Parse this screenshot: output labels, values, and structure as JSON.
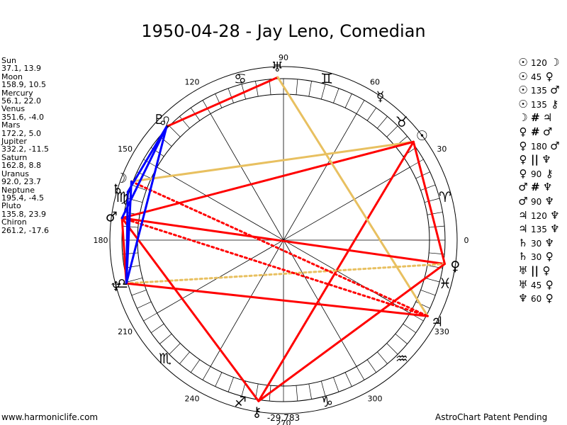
{
  "title": "1950-04-28 - Jay Leno, Comedian",
  "positions": [
    {
      "name": "Sun",
      "value": "37.1, 13.9"
    },
    {
      "name": "Moon",
      "value": "158.9, 10.5"
    },
    {
      "name": "Mercury",
      "value": "56.1, 22.0"
    },
    {
      "name": "Venus",
      "value": "351.6, -4.0"
    },
    {
      "name": "Mars",
      "value": "172.2, 5.0"
    },
    {
      "name": "Jupiter",
      "value": "332.2, -11.5"
    },
    {
      "name": "Saturn",
      "value": "162.8, 8.8"
    },
    {
      "name": "Uranus",
      "value": "92.0, 23.7"
    },
    {
      "name": "Neptune",
      "value": "195.4, -4.5"
    },
    {
      "name": "Pluto",
      "value": "135.8, 23.9"
    },
    {
      "name": "Chiron",
      "value": "261.2, -17.6"
    }
  ],
  "aspects": [
    {
      "a": "☉",
      "sym": "120",
      "b": "☽"
    },
    {
      "a": "☉",
      "sym": "45",
      "b": "♀"
    },
    {
      "a": "☉",
      "sym": "135",
      "b": "♂"
    },
    {
      "a": "☉",
      "sym": "135",
      "b": "⚷"
    },
    {
      "a": "☽",
      "sym": "#",
      "b": "♃"
    },
    {
      "a": "♀",
      "sym": "#",
      "b": "♂"
    },
    {
      "a": "♀",
      "sym": "180",
      "b": "♂"
    },
    {
      "a": "♀",
      "sym": "||",
      "b": "♆"
    },
    {
      "a": "♀",
      "sym": "90",
      "b": "⚷"
    },
    {
      "a": "♂",
      "sym": "#",
      "b": "♆"
    },
    {
      "a": "♂",
      "sym": "90",
      "b": "♆"
    },
    {
      "a": "♃",
      "sym": "120",
      "b": "♆"
    },
    {
      "a": "♃",
      "sym": "135",
      "b": "♆"
    },
    {
      "a": "♄",
      "sym": "30",
      "b": "♆"
    },
    {
      "a": "♄",
      "sym": "30",
      "b": "♀"
    },
    {
      "a": "♅",
      "sym": "||",
      "b": "♀"
    },
    {
      "a": "♅",
      "sym": "45",
      "b": "♀"
    },
    {
      "a": "♆",
      "sym": "60",
      "b": "♀"
    }
  ],
  "wheel": {
    "degree_labels": [
      "0",
      "30",
      "60",
      "90",
      "120",
      "150",
      "180",
      "210",
      "240",
      "270",
      "300",
      "330"
    ],
    "sign_glyphs": [
      "♈",
      "♉",
      "♊",
      "♋",
      "♌",
      "♍",
      "♎",
      "♏",
      "♐",
      "♑",
      "♒",
      "♓"
    ],
    "bottom_value": "-29,783"
  },
  "planets": [
    {
      "glyph": "☉",
      "name": "sun",
      "lon": 37.1
    },
    {
      "glyph": "☽",
      "name": "moon",
      "lon": 158.9
    },
    {
      "glyph": "☿",
      "name": "mercury",
      "lon": 56.1
    },
    {
      "glyph": "♀",
      "name": "venus",
      "lon": 351.6
    },
    {
      "glyph": "♂",
      "name": "mars",
      "lon": 172.2
    },
    {
      "glyph": "♃",
      "name": "jupiter",
      "lon": 332.2
    },
    {
      "glyph": "♄",
      "name": "saturn",
      "lon": 162.8
    },
    {
      "glyph": "♅",
      "name": "uranus",
      "lon": 92.0
    },
    {
      "glyph": "♆",
      "name": "neptune",
      "lon": 195.4
    },
    {
      "glyph": "♇",
      "name": "pluto",
      "lon": 135.8
    },
    {
      "glyph": "⚷",
      "name": "chiron",
      "lon": 261.2
    }
  ],
  "aspect_lines": [
    {
      "from": "sun",
      "to": "moon",
      "color": "#e8c060",
      "style": "solid"
    },
    {
      "from": "sun",
      "to": "venus",
      "color": "#ff0000",
      "style": "solid"
    },
    {
      "from": "sun",
      "to": "mars",
      "color": "#ff0000",
      "style": "solid"
    },
    {
      "from": "sun",
      "to": "chiron",
      "color": "#ff0000",
      "style": "solid"
    },
    {
      "from": "uranus",
      "to": "pluto",
      "color": "#ff0000",
      "style": "solid"
    },
    {
      "from": "uranus",
      "to": "jupiter",
      "color": "#e8c060",
      "style": "solid"
    },
    {
      "from": "venus",
      "to": "mars",
      "color": "#ff0000",
      "style": "solid"
    },
    {
      "from": "venus",
      "to": "neptune",
      "color": "#e8c060",
      "style": "dotted"
    },
    {
      "from": "venus",
      "to": "chiron",
      "color": "#ff0000",
      "style": "solid"
    },
    {
      "from": "mars",
      "to": "neptune",
      "color": "#ff0000",
      "style": "solid"
    },
    {
      "from": "mars",
      "to": "chiron",
      "color": "#ff0000",
      "style": "solid"
    },
    {
      "from": "moon",
      "to": "jupiter",
      "color": "#ff0000",
      "style": "dotted"
    },
    {
      "from": "mars",
      "to": "jupiter",
      "color": "#ff0000",
      "style": "dotted"
    },
    {
      "from": "neptune",
      "to": "jupiter",
      "color": "#ff0000",
      "style": "solid"
    },
    {
      "from": "pluto",
      "to": "saturn",
      "color": "#0000ff",
      "style": "solid"
    },
    {
      "from": "pluto",
      "to": "mars",
      "color": "#0000ff",
      "style": "solid"
    },
    {
      "from": "pluto",
      "to": "neptune",
      "color": "#0000ff",
      "style": "solid"
    },
    {
      "from": "saturn",
      "to": "neptune",
      "color": "#0000ff",
      "style": "solid"
    },
    {
      "from": "moon",
      "to": "neptune",
      "color": "#0000ff",
      "style": "solid"
    }
  ],
  "footer": {
    "left": "www.harmoniclife.com",
    "right": "AstroChart Patent Pending"
  }
}
